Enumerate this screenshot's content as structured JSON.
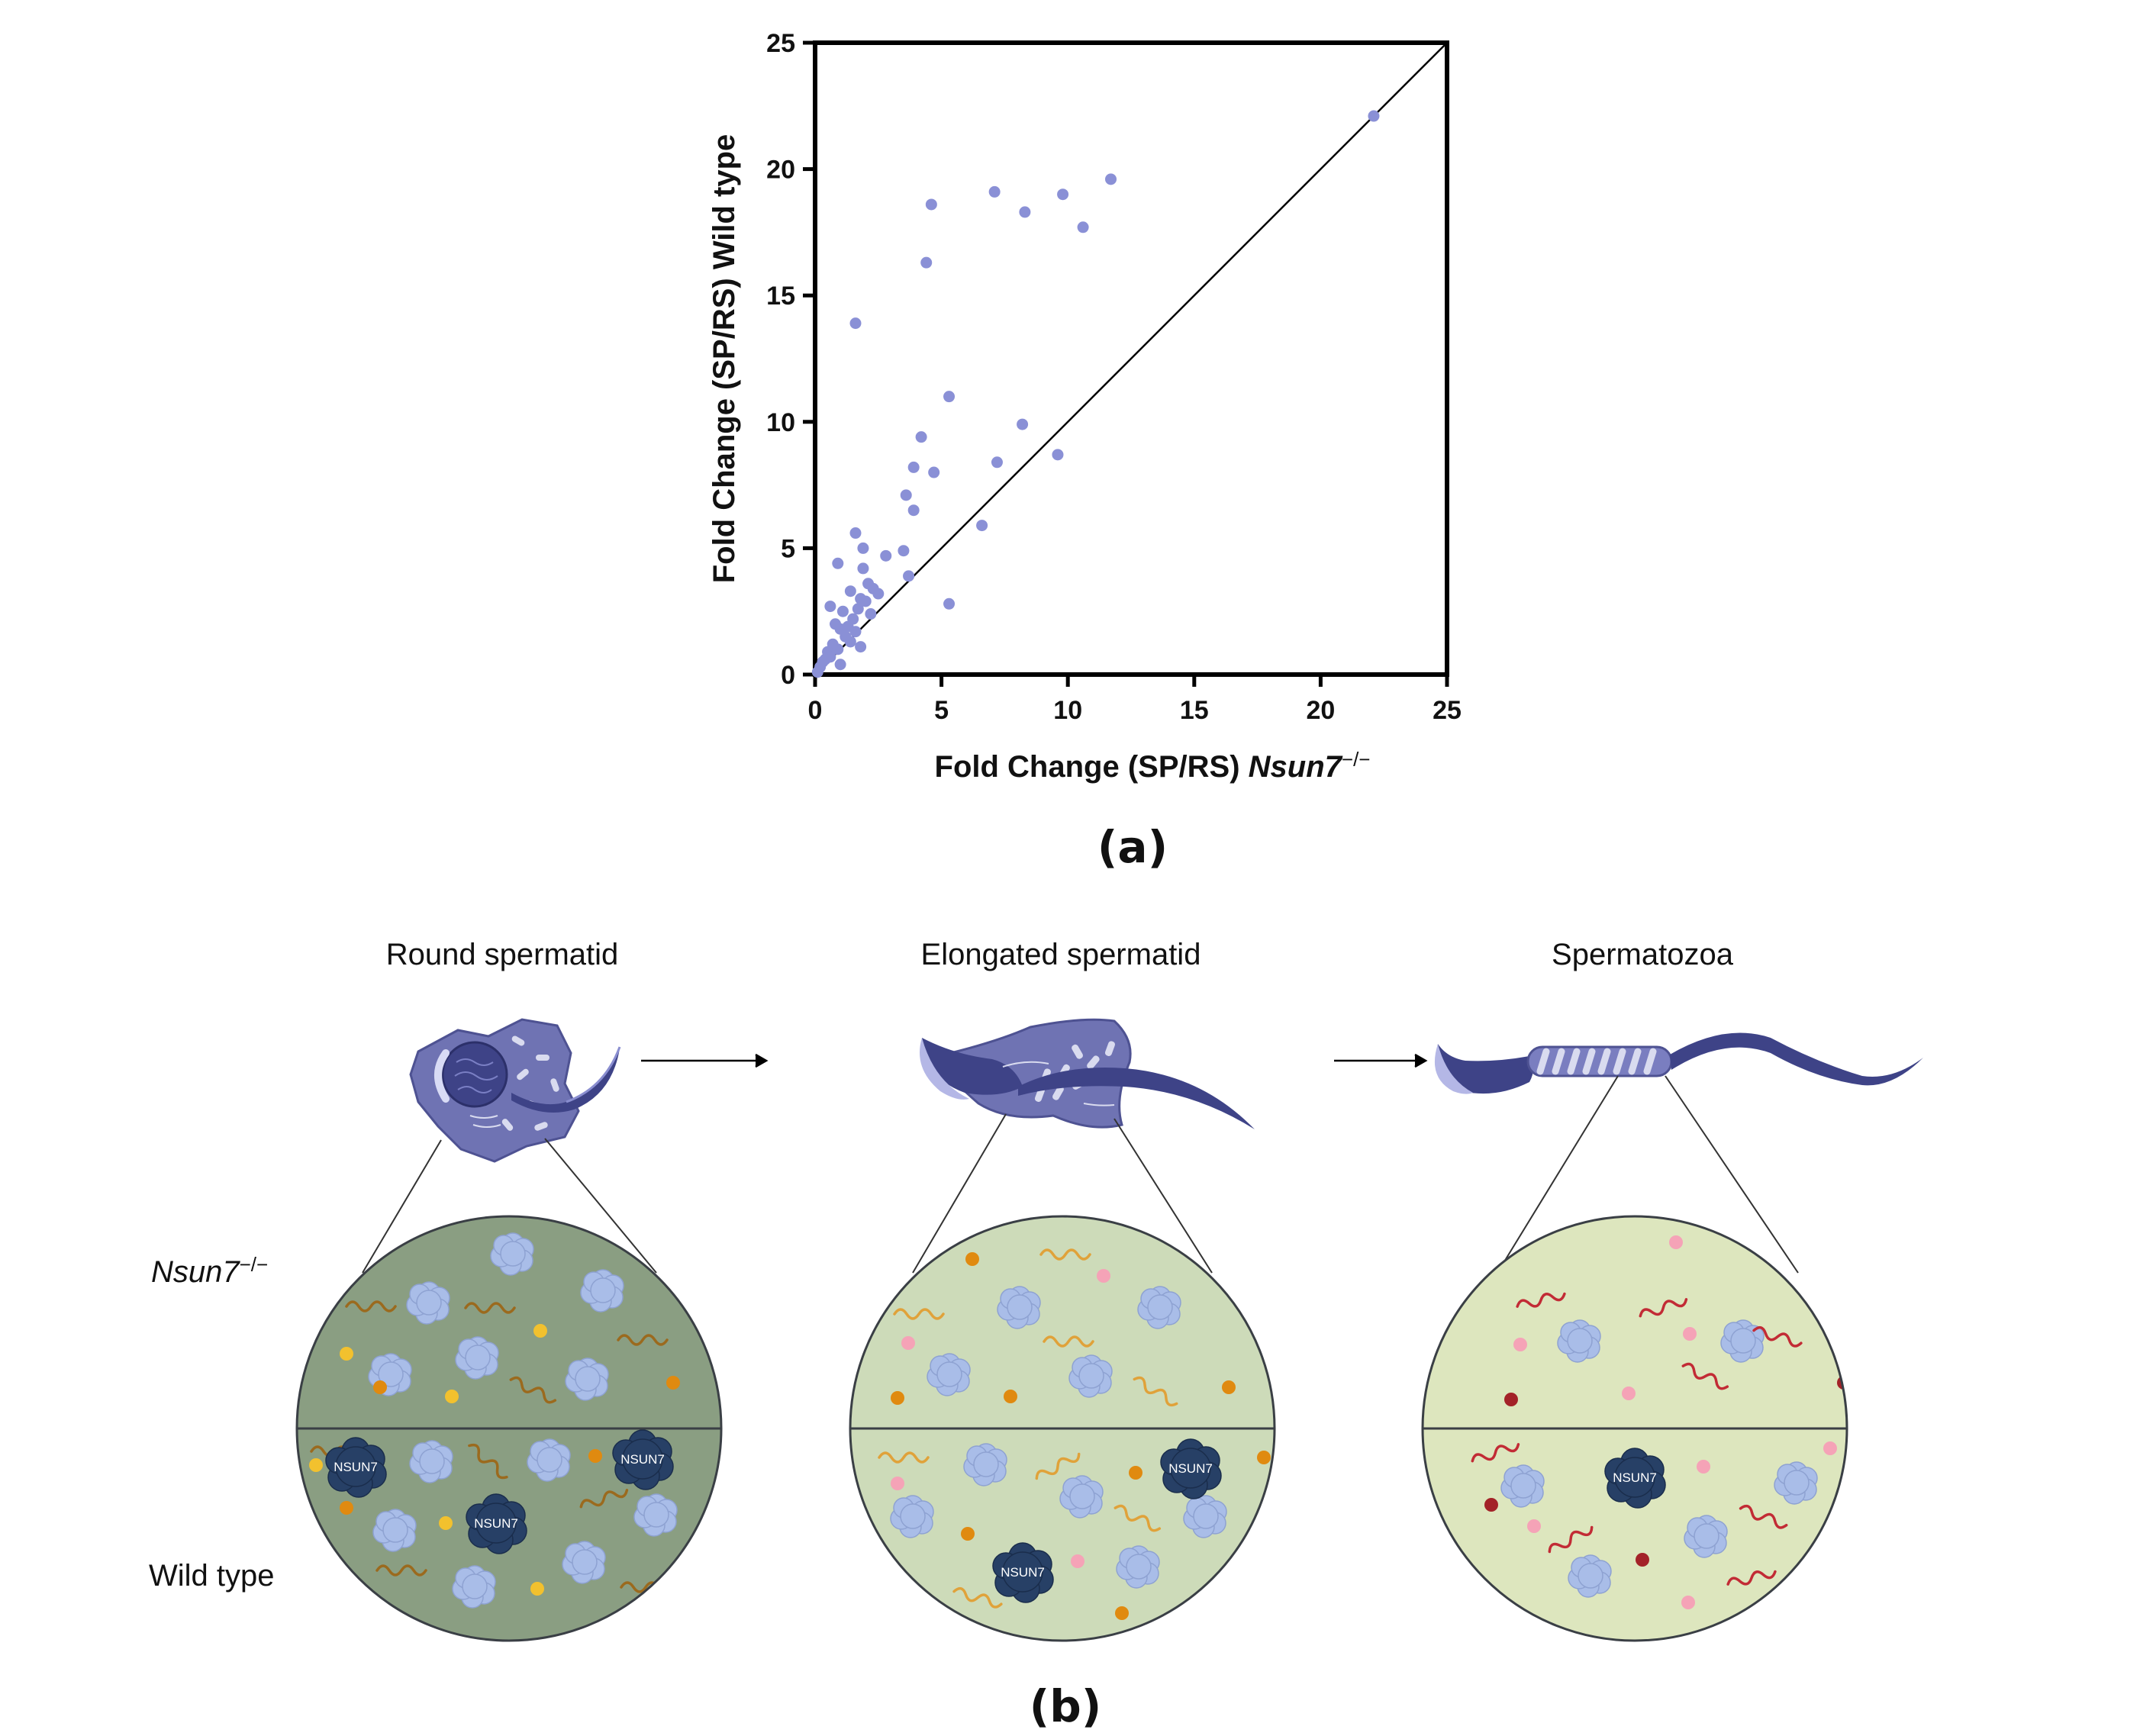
{
  "panel_a": {
    "label": "(a)",
    "xlabel_main": "Fold Change (SP/RS) ",
    "xlabel_gene": "Nsun7",
    "xlabel_sup": "−/−",
    "ylabel": "Fold Change (SP/RS) Wild type"
  },
  "chart_data": {
    "type": "scatter",
    "title": "",
    "xlabel": "Fold Change (SP/RS) Nsun7 −/−",
    "ylabel": "Fold Change (SP/RS) Wild type",
    "xlim": [
      0,
      25
    ],
    "ylim": [
      0,
      25
    ],
    "xticks": [
      "0",
      "5",
      "10",
      "15",
      "20",
      "25"
    ],
    "yticks": [
      "0",
      "5",
      "10",
      "15",
      "20",
      "25"
    ],
    "grid": false,
    "reference_line": "y = x",
    "point_color": "#8a90d6",
    "points": [
      [
        22.1,
        22.1
      ],
      [
        11.7,
        19.6
      ],
      [
        7.1,
        19.1
      ],
      [
        9.8,
        19.0
      ],
      [
        8.3,
        18.3
      ],
      [
        4.6,
        18.6
      ],
      [
        10.6,
        17.7
      ],
      [
        4.4,
        16.3
      ],
      [
        1.6,
        13.9
      ],
      [
        5.3,
        11.0
      ],
      [
        8.2,
        9.9
      ],
      [
        4.2,
        9.4
      ],
      [
        9.6,
        8.7
      ],
      [
        7.2,
        8.4
      ],
      [
        3.9,
        8.2
      ],
      [
        4.7,
        8.0
      ],
      [
        3.6,
        7.1
      ],
      [
        3.9,
        6.5
      ],
      [
        6.6,
        5.9
      ],
      [
        1.6,
        5.6
      ],
      [
        1.9,
        5.0
      ],
      [
        3.5,
        4.9
      ],
      [
        2.8,
        4.7
      ],
      [
        0.9,
        4.4
      ],
      [
        1.9,
        4.2
      ],
      [
        3.7,
        3.9
      ],
      [
        2.1,
        3.6
      ],
      [
        2.3,
        3.4
      ],
      [
        1.4,
        3.3
      ],
      [
        2.5,
        3.2
      ],
      [
        1.8,
        3.0
      ],
      [
        2.0,
        2.9
      ],
      [
        5.3,
        2.8
      ],
      [
        0.6,
        2.7
      ],
      [
        1.7,
        2.6
      ],
      [
        1.1,
        2.5
      ],
      [
        2.2,
        2.4
      ],
      [
        1.5,
        2.2
      ],
      [
        0.8,
        2.0
      ],
      [
        1.3,
        1.9
      ],
      [
        1.0,
        1.8
      ],
      [
        1.6,
        1.7
      ],
      [
        1.2,
        1.5
      ],
      [
        1.4,
        1.3
      ],
      [
        1.8,
        1.1
      ],
      [
        0.7,
        1.2
      ],
      [
        0.9,
        1.0
      ],
      [
        0.5,
        0.9
      ],
      [
        0.6,
        0.7
      ],
      [
        1.0,
        0.4
      ],
      [
        0.4,
        0.6
      ],
      [
        0.3,
        0.5
      ],
      [
        0.2,
        0.3
      ],
      [
        0.1,
        0.1
      ]
    ]
  },
  "panel_b": {
    "label": "(b)",
    "stages": [
      "Round spermatid",
      "Elongated spermatid",
      "Spermatozoa"
    ],
    "row_top_gene": "Nsun7",
    "row_top_sup": "−/−",
    "row_bottom": "Wild type",
    "protein_label": "NSUN7",
    "colors": {
      "cell_body": "#6f73b3",
      "nucleus": "#3e4387",
      "circle_round": "#8a9e82",
      "circle_elongated": "#cddbb9",
      "circle_spermatozoa": "#dde6be",
      "protein": "#a9bde8",
      "nsun7": "#274066",
      "rna_round": "#9b6a1e",
      "rna_elongated": "#e0a23a",
      "rna_spermatozoa": "#c22b35",
      "dot_yellow": "#f2c12e",
      "dot_orange": "#e08a10",
      "dot_pink": "#f5a3b7",
      "dot_red": "#a32228"
    }
  }
}
